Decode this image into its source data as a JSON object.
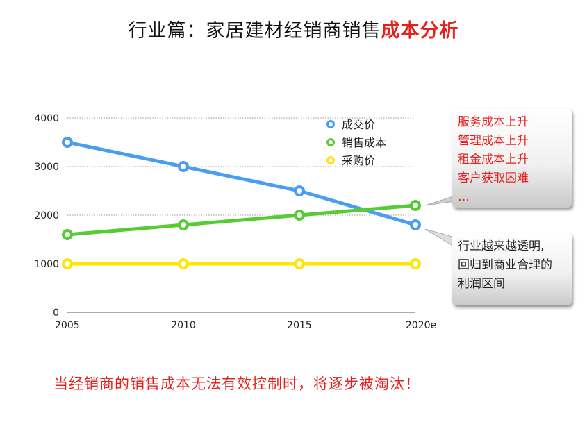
{
  "title": {
    "prefix": "行业篇：家居建材经销商销售",
    "highlight": "成本分析"
  },
  "chart_data": {
    "type": "line",
    "categories": [
      "2005",
      "2010",
      "2015",
      "2020e"
    ],
    "ylim": [
      0,
      4000
    ],
    "yticks": [
      0,
      1000,
      2000,
      3000,
      4000
    ],
    "grid": true,
    "legend_position": "top-right",
    "series": [
      {
        "name": "成交价",
        "color": "#4a9df1",
        "values": [
          3500,
          3000,
          2500,
          1800
        ]
      },
      {
        "name": "销售成本",
        "color": "#55cc33",
        "values": [
          1600,
          1800,
          2000,
          2200
        ]
      },
      {
        "name": "采购价",
        "color": "#ffe600",
        "values": [
          1000,
          1000,
          1000,
          1000
        ]
      }
    ]
  },
  "callouts": {
    "cost": {
      "lines": [
        "服务成本上升",
        "管理成本上升",
        "租金成本上升",
        "客户获取困难",
        "…"
      ]
    },
    "price": {
      "lines": [
        "行业越来越透明,",
        "回归到商业合理的",
        "利润区间"
      ]
    }
  },
  "footer": "当经销商的销售成本无法有效控制时，将逐步被淘汰！"
}
